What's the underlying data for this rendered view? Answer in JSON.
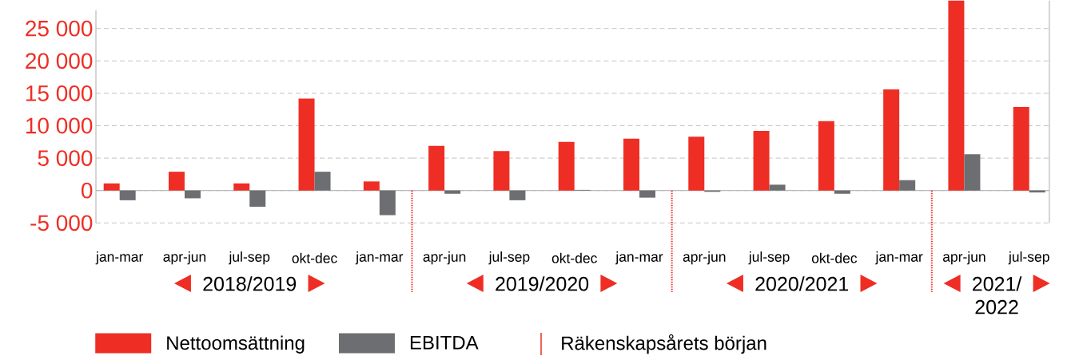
{
  "chart_data": [
    {
      "type": "bar",
      "xlabel": "2018/2019",
      "categories": [
        "jan-mar",
        "apr-jun",
        "jul-sep",
        "okt-dec",
        "jan-mar"
      ],
      "series": [
        {
          "name": "Nettoomsättning",
          "color": "#ee2e24",
          "values": [
            1100,
            2900,
            1100,
            14200,
            1400
          ]
        },
        {
          "name": "EBITDA",
          "color": "#6d6e71",
          "values": [
            -1500,
            -1200,
            -2500,
            2900,
            -3800
          ]
        }
      ],
      "ylim": [
        -5000,
        27800
      ],
      "yticks": [
        {
          "value": -5000,
          "label": "-5 000"
        },
        0,
        {
          "value": 5000,
          "label": "5 000"
        },
        {
          "value": 10000,
          "label": "10 000"
        },
        {
          "value": 15000,
          "label": "15 000"
        },
        {
          "value": 20000,
          "label": "20 000"
        },
        {
          "value": 25000,
          "label": "25 000"
        }
      ],
      "grid": "y",
      "legend": "bottom",
      "annotations": [
        "Räkenskapsårets början"
      ]
    },
    {
      "type": "bar",
      "xlabel": "2019/2020",
      "categories": [
        "apr-jun",
        "jul-sep",
        "okt-dec",
        "jan-mar"
      ],
      "series": [
        {
          "color": "#ee2e24",
          "values": [
            6900,
            6100,
            7500,
            8000
          ]
        },
        {
          "color": "#6d6e71",
          "values": [
            -500,
            -1500,
            100,
            -1100
          ]
        }
      ],
      "ylim": [
        -5000,
        25000
      ],
      "yticks": [
        -5000,
        0,
        5000,
        10000,
        15000,
        20000,
        25000
      ],
      "grid": "y",
      "tick_labels": "x"
    },
    {
      "type": "bar",
      "xlabel": "2020/2021",
      "categories": [
        "apr-jun",
        "jul-sep",
        "okt-dec",
        "jan-mar"
      ],
      "series": [
        {
          "color": "#ee2e24",
          "values": [
            8300,
            9200,
            10700,
            15600
          ]
        },
        {
          "color": "#6d6e71",
          "values": [
            -200,
            900,
            -500,
            1600
          ]
        }
      ],
      "ylim": [
        -5000,
        25000
      ],
      "yticks": [
        -5000,
        0,
        5000,
        10000,
        15000,
        20000,
        25000
      ],
      "grid": "y",
      "tick_labels": "x"
    },
    {
      "type": "bar",
      "xlabel": "2021/2022",
      "categories": [
        "apr-jun",
        "jul-sep"
      ],
      "series": [
        {
          "color": "#ee2e24",
          "values": [
            29300,
            12900
          ]
        },
        {
          "color": "#6d6e71",
          "values": [
            5600,
            -300
          ]
        }
      ],
      "ylim": [
        -5000,
        29300
      ],
      "yticks": [
        -5000,
        0,
        5000,
        10000,
        15000,
        20000,
        25000
      ],
      "grid": "y",
      "tick_labels": "x"
    }
  ]
}
